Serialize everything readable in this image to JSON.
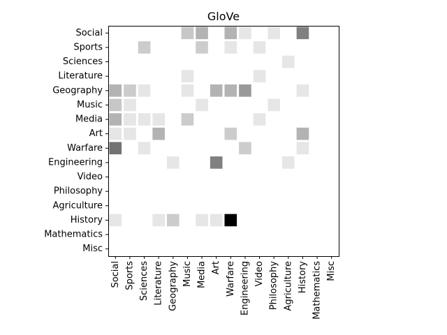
{
  "chart_data": {
    "type": "heatmap",
    "title": "GloVe",
    "xlabel": "",
    "ylabel": "",
    "colormap": "Greys",
    "value_range": [
      0,
      1
    ],
    "grid": false,
    "x_categories": [
      "Social",
      "Sports",
      "Sciences",
      "Literature",
      "Geography",
      "Music",
      "Media",
      "Art",
      "Warfare",
      "Engineering",
      "Video",
      "Philosophy",
      "Agriculture",
      "History",
      "Mathematics",
      "Misc"
    ],
    "y_categories": [
      "Social",
      "Sports",
      "Sciences",
      "Literature",
      "Geography",
      "Music",
      "Media",
      "Art",
      "Warfare",
      "Engineering",
      "Video",
      "Philosophy",
      "Agriculture",
      "History",
      "Mathematics",
      "Misc"
    ],
    "matrix": [
      [
        0,
        0,
        0,
        0,
        0,
        0.22,
        0.3,
        0,
        0.3,
        0.1,
        0,
        0.1,
        0,
        0.5,
        0,
        0
      ],
      [
        0,
        0,
        0.2,
        0,
        0,
        0,
        0.2,
        0,
        0.1,
        0,
        0.1,
        0,
        0,
        0,
        0,
        0
      ],
      [
        0,
        0,
        0,
        0,
        0,
        0,
        0,
        0,
        0,
        0,
        0,
        0,
        0.1,
        0,
        0,
        0
      ],
      [
        0,
        0,
        0,
        0,
        0,
        0.1,
        0,
        0,
        0,
        0,
        0.1,
        0,
        0,
        0,
        0,
        0
      ],
      [
        0.3,
        0.2,
        0.1,
        0,
        0,
        0.1,
        0,
        0.3,
        0.3,
        0.4,
        0,
        0,
        0,
        0.1,
        0,
        0
      ],
      [
        0.22,
        0.1,
        0,
        0,
        0,
        0,
        0.1,
        0,
        0,
        0,
        0,
        0.1,
        0,
        0,
        0,
        0
      ],
      [
        0.3,
        0.1,
        0.1,
        0.1,
        0,
        0.2,
        0,
        0,
        0,
        0,
        0.1,
        0,
        0,
        0,
        0,
        0
      ],
      [
        0.1,
        0.1,
        0,
        0.3,
        0,
        0,
        0,
        0,
        0.2,
        0,
        0,
        0,
        0,
        0.3,
        0,
        0
      ],
      [
        0.55,
        0,
        0.1,
        0,
        0,
        0,
        0,
        0,
        0,
        0.2,
        0,
        0,
        0,
        0.1,
        0,
        0
      ],
      [
        0,
        0,
        0,
        0,
        0.1,
        0,
        0,
        0.5,
        0,
        0,
        0,
        0,
        0.1,
        0,
        0,
        0
      ],
      [
        0,
        0,
        0,
        0,
        0,
        0,
        0,
        0,
        0,
        0,
        0,
        0,
        0,
        0,
        0,
        0
      ],
      [
        0,
        0,
        0,
        0,
        0,
        0,
        0,
        0,
        0,
        0,
        0,
        0,
        0,
        0,
        0,
        0
      ],
      [
        0,
        0,
        0,
        0,
        0,
        0,
        0,
        0,
        0,
        0,
        0,
        0,
        0,
        0,
        0,
        0
      ],
      [
        0.1,
        0,
        0,
        0.1,
        0.2,
        0,
        0.1,
        0.1,
        1.0,
        0,
        0,
        0,
        0,
        0,
        0,
        0
      ],
      [
        0,
        0,
        0,
        0,
        0,
        0,
        0,
        0,
        0,
        0,
        0,
        0,
        0,
        0,
        0,
        0
      ],
      [
        0,
        0,
        0,
        0,
        0,
        0,
        0,
        0,
        0,
        0,
        0,
        0,
        0,
        0,
        0,
        0
      ]
    ]
  }
}
